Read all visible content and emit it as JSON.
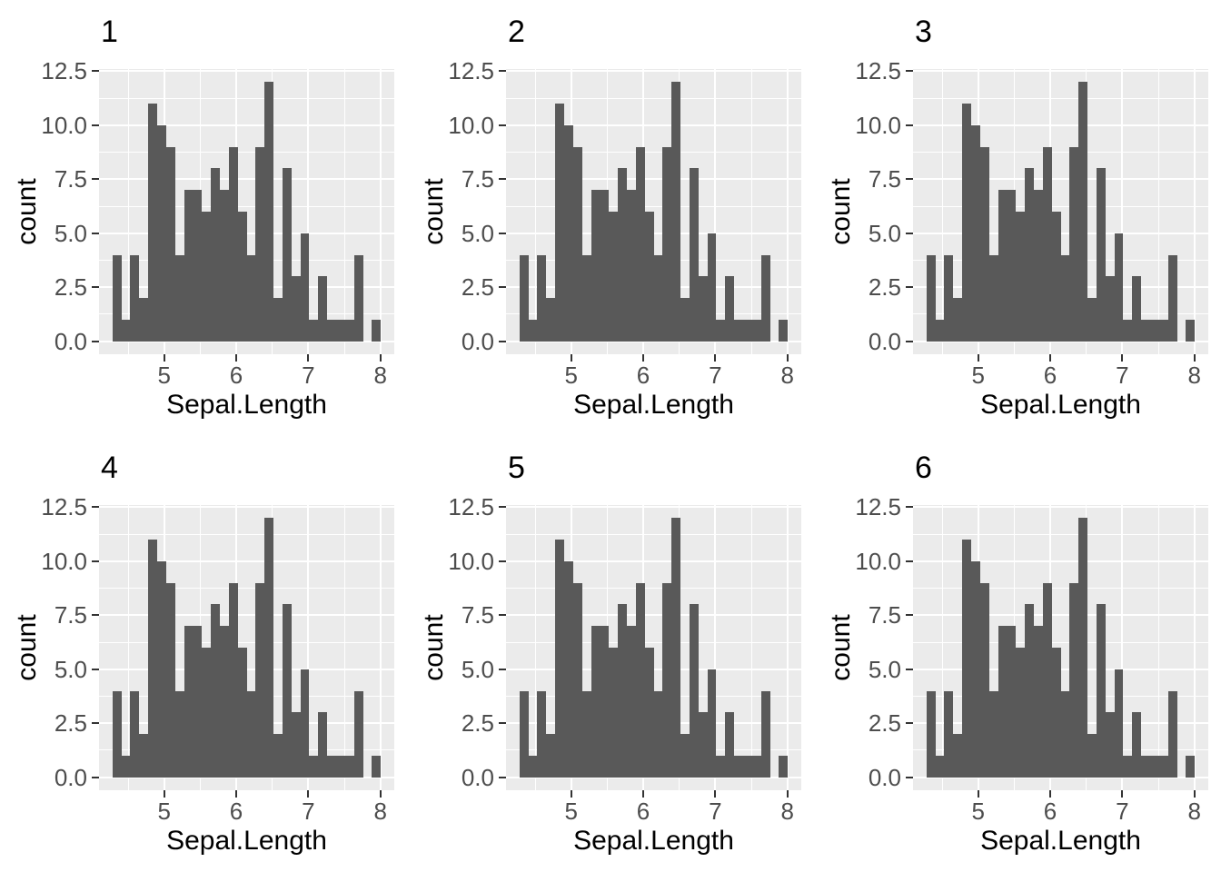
{
  "figure": {
    "background": "#FFFFFF",
    "grid": {
      "rows": 2,
      "cols": 3
    },
    "panels": [
      {
        "title": "1"
      },
      {
        "title": "2"
      },
      {
        "title": "3"
      },
      {
        "title": "4"
      },
      {
        "title": "5"
      },
      {
        "title": "6"
      }
    ]
  },
  "chart_data": {
    "type": "bar",
    "subtype": "histogram",
    "note": "Six identical histograms of iris Sepal.Length (30 bins), ggplot2 theme_gray style, panels titled 1-6",
    "title": "",
    "xlabel": "Sepal.Length",
    "ylabel": "count",
    "x_tick_labels": [
      "5",
      "6",
      "7",
      "8"
    ],
    "x_tick_values": [
      5,
      6,
      7,
      8
    ],
    "y_tick_labels": [
      "0.0",
      "2.5",
      "5.0",
      "7.5",
      "10.0",
      "12.5"
    ],
    "y_tick_values": [
      0,
      2.5,
      5,
      7.5,
      10,
      12.5
    ],
    "x_minor_values": [
      4.5,
      5.5,
      6.5,
      7.5
    ],
    "y_minor_values": [
      1.25,
      3.75,
      6.25,
      8.75,
      11.25
    ],
    "xlim": [
      4.09655,
      8.1931
    ],
    "ylim": [
      -0.6,
      12.6
    ],
    "grid_on": true,
    "legend": "none",
    "bins": {
      "start": 4.282759,
      "width": 0.124138,
      "counts": [
        4,
        1,
        4,
        2,
        11,
        10,
        9,
        4,
        7,
        7,
        6,
        8,
        7,
        9,
        6,
        4,
        9,
        12,
        2,
        8,
        3,
        5,
        1,
        3,
        1,
        1,
        1,
        4,
        0,
        1
      ]
    },
    "colors": {
      "bar": "#595959",
      "panel_bg": "#EBEBEB",
      "gridline": "#FFFFFF",
      "axis_text": "#4D4D4D",
      "tick_mark": "#333333",
      "title_text": "#000000"
    }
  }
}
